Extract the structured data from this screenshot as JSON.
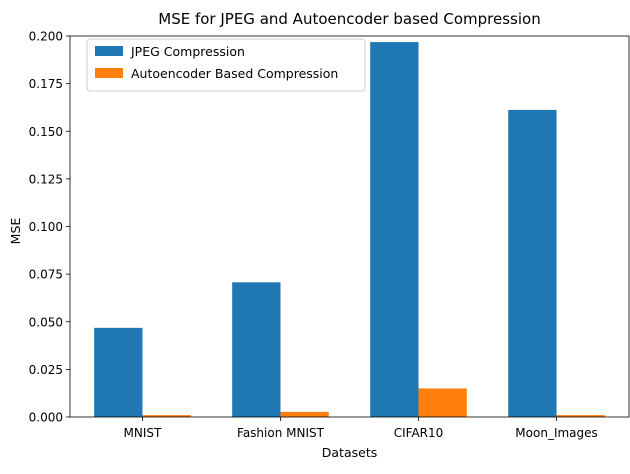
{
  "chart_data": {
    "type": "bar",
    "title": "MSE for JPEG and Autoencoder based Compression",
    "xlabel": "Datasets",
    "ylabel": "MSE",
    "categories": [
      "MNIST",
      "Fashion MNIST",
      "CIFAR10",
      "Moon_Images"
    ],
    "series": [
      {
        "name": "JPEG Compression",
        "color": "#1f77b4",
        "values": [
          0.0468,
          0.0707,
          0.1968,
          0.1612
        ]
      },
      {
        "name": "Autoencoder Based Compression",
        "color": "#ff7f0e",
        "values": [
          0.001,
          0.0027,
          0.015,
          0.001
        ]
      }
    ],
    "ylim": [
      0,
      0.2
    ],
    "yticks": [
      "0.000",
      "0.025",
      "0.050",
      "0.075",
      "0.100",
      "0.125",
      "0.150",
      "0.175",
      "0.200"
    ],
    "grid": false,
    "legend_position": "upper-left"
  }
}
